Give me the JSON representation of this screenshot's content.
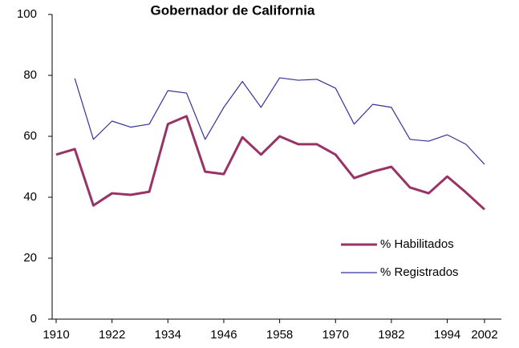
{
  "chart_data": {
    "type": "line",
    "title": "Gobernador de California",
    "x": [
      1910,
      1914,
      1918,
      1922,
      1926,
      1930,
      1934,
      1938,
      1942,
      1946,
      1950,
      1954,
      1958,
      1962,
      1966,
      1970,
      1974,
      1978,
      1982,
      1986,
      1990,
      1994,
      1998,
      2002
    ],
    "series": [
      {
        "name": "% Habilitados",
        "color": "#993366",
        "values": [
          54,
          55.8,
          37.3,
          41.3,
          40.8,
          41.8,
          64,
          66.6,
          48.4,
          47.6,
          59.7,
          54,
          60,
          57.4,
          57.4,
          54,
          46.3,
          48.4,
          50,
          43.2,
          41.3,
          46.8,
          41.6,
          36
        ]
      },
      {
        "name": "% Registrados",
        "color": "#333399",
        "values": [
          null,
          79,
          59,
          65,
          63,
          64,
          75,
          74.2,
          59,
          69.5,
          78,
          69.5,
          79.2,
          78.4,
          78.7,
          75.8,
          64,
          70.5,
          69.5,
          59,
          58.4,
          60.5,
          57.4,
          50.8
        ]
      }
    ],
    "xlim": [
      1910,
      2002
    ],
    "xticks": [
      1910,
      1922,
      1934,
      1946,
      1958,
      1970,
      1982,
      1994,
      2002
    ],
    "ylim": [
      0,
      100
    ],
    "yticks": [
      0,
      20,
      40,
      60,
      80,
      100
    ],
    "grid": false,
    "legend": "lower right"
  }
}
